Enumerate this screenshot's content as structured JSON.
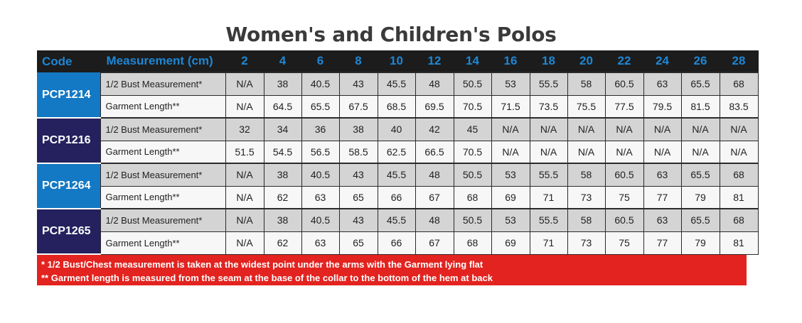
{
  "title": "Women's and Children's Polos",
  "header": {
    "code": "Code",
    "measurement": "Measurement (cm)",
    "sizes": [
      "2",
      "4",
      "6",
      "8",
      "10",
      "12",
      "14",
      "16",
      "18",
      "20",
      "22",
      "24",
      "26",
      "28"
    ]
  },
  "products": [
    {
      "code": "PCP1214",
      "code_color": "#1479c4",
      "rows": [
        {
          "label": "1/2 Bust Measurement*",
          "values": [
            "N/A",
            "38",
            "40.5",
            "43",
            "45.5",
            "48",
            "50.5",
            "53",
            "55.5",
            "58",
            "60.5",
            "63",
            "65.5",
            "68"
          ]
        },
        {
          "label": "Garment Length**",
          "values": [
            "N/A",
            "64.5",
            "65.5",
            "67.5",
            "68.5",
            "69.5",
            "70.5",
            "71.5",
            "73.5",
            "75.5",
            "77.5",
            "79.5",
            "81.5",
            "83.5"
          ]
        }
      ]
    },
    {
      "code": "PCP1216",
      "code_color": "#24215e",
      "rows": [
        {
          "label": "1/2 Bust Measurement*",
          "values": [
            "32",
            "34",
            "36",
            "38",
            "40",
            "42",
            "45",
            "N/A",
            "N/A",
            "N/A",
            "N/A",
            "N/A",
            "N/A",
            "N/A"
          ]
        },
        {
          "label": "Garment Length**",
          "values": [
            "51.5",
            "54.5",
            "56.5",
            "58.5",
            "62.5",
            "66.5",
            "70.5",
            "N/A",
            "N/A",
            "N/A",
            "N/A",
            "N/A",
            "N/A",
            "N/A"
          ]
        }
      ]
    },
    {
      "code": "PCP1264",
      "code_color": "#1479c4",
      "rows": [
        {
          "label": "1/2 Bust Measurement*",
          "values": [
            "N/A",
            "38",
            "40.5",
            "43",
            "45.5",
            "48",
            "50.5",
            "53",
            "55.5",
            "58",
            "60.5",
            "63",
            "65.5",
            "68"
          ]
        },
        {
          "label": "Garment Length**",
          "values": [
            "N/A",
            "62",
            "63",
            "65",
            "66",
            "67",
            "68",
            "69",
            "71",
            "73",
            "75",
            "77",
            "79",
            "81"
          ]
        }
      ]
    },
    {
      "code": "PCP1265",
      "code_color": "#24215e",
      "rows": [
        {
          "label": "1/2 Bust Measurement*",
          "values": [
            "N/A",
            "38",
            "40.5",
            "43",
            "45.5",
            "48",
            "50.5",
            "53",
            "55.5",
            "58",
            "60.5",
            "63",
            "65.5",
            "68"
          ]
        },
        {
          "label": "Garment Length**",
          "values": [
            "N/A",
            "62",
            "63",
            "65",
            "66",
            "67",
            "68",
            "69",
            "71",
            "73",
            "75",
            "77",
            "79",
            "81"
          ]
        }
      ]
    }
  ],
  "footnotes": [
    "* 1/2 Bust/Chest measurement is taken at the widest point under the arms with the Garment lying flat",
    "** Garment length is measured from the seam at the base of the collar to the bottom of the hem at back"
  ],
  "colors": {
    "header_bg": "#1c1c1c",
    "header_text": "#1e86d4",
    "code_blue": "#1479c4",
    "code_navy": "#24215e",
    "footer_bg": "#e2231f"
  }
}
